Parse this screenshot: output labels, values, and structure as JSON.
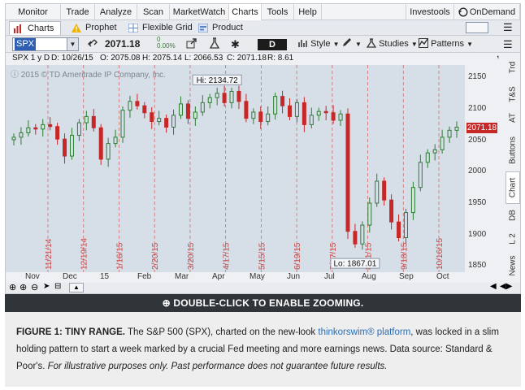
{
  "menu": {
    "items": [
      "Monitor",
      "Trade",
      "Analyze",
      "Scan",
      "MarketWatch",
      "Charts",
      "Tools",
      "Help"
    ],
    "right_items": [
      "Investools",
      "OnDemand"
    ]
  },
  "tabs": [
    "Charts",
    "Prophet",
    "Flexible Grid",
    "Product Depth"
  ],
  "toolbar": {
    "symbol": "SPX",
    "price": "2071.18",
    "change_top": "0",
    "change_bottom": "0.00%",
    "period": "D",
    "style_label": "Style",
    "studies_label": "Studies",
    "patterns_label": "Patterns"
  },
  "info": {
    "symbol_range": "SPX 1 y D",
    "date": "D: 10/26/15",
    "open": "O: 2075.08",
    "high": "H: 2075.14",
    "low": "L: 2066.53",
    "close": "C: 2071.18",
    "range": "R: 8.61"
  },
  "copyright": "2015 © TD Ameritrade IP Company, Inc.",
  "annotations": {
    "high": "Hi: 2134.72",
    "low": "Lo: 1867.01",
    "last_price": "2071.18"
  },
  "side_tabs": [
    "Trd",
    "T&S",
    "AT",
    "Buttons",
    "Chart",
    "DB",
    "L 2",
    "News"
  ],
  "chart_data": {
    "type": "candlestick",
    "yticks": [
      2150,
      2100,
      2050,
      2000,
      1950,
      1900,
      1850
    ],
    "ylim": [
      1840,
      2170
    ],
    "xtick_labels": [
      "Nov",
      "Dec",
      "15",
      "Feb",
      "Mar",
      "Apr",
      "May",
      "Jun",
      "Jul",
      "Aug",
      "Sep",
      "Oct"
    ],
    "event_dates": [
      "11/21/14",
      "12/19/14",
      "1/16/15",
      "2/20/15",
      "3/20/15",
      "4/17/15",
      "5/15/15",
      "6/19/15",
      "7/17/15",
      "8/21/15",
      "9/18/15",
      "10/16/15"
    ],
    "closes": [
      2055,
      2062,
      2070,
      2068,
      2075,
      2072,
      2052,
      2025,
      2058,
      2078,
      2088,
      2070,
      2020,
      2045,
      2055,
      2098,
      2112,
      2105,
      2094,
      2080,
      2085,
      2071,
      2090,
      2108,
      2085,
      2095,
      2110,
      2118,
      2125,
      2110,
      2128,
      2112,
      2085,
      2095,
      2080,
      2092,
      2120,
      2105,
      2088,
      2110,
      2075,
      2090,
      2096,
      2094,
      2082,
      2092,
      1905,
      1885,
      1915,
      1950,
      1985,
      1955,
      1920,
      1895,
      1935,
      1975,
      2015,
      2030,
      2035,
      2055,
      2066,
      2071
    ]
  },
  "banner": "DOUBLE-CLICK TO ENABLE ZOOMING.",
  "caption": {
    "label": "FIGURE 1: TINY RANGE.",
    "text1": "The S&P 500 (SPX), charted on the new-look",
    "link": "thinkorswim® platform",
    "text2": ", was locked in a slim holding pattern to start a week marked by a crucial Fed meeting and more earnings news. Data source: Standard & Poor's.",
    "disclaimer": "For illustrative purposes only. Past performance does not guarantee future results."
  },
  "colors": {
    "up": "#2e7d32",
    "down": "#c62828",
    "chart_bg": "#d6dee8",
    "banner_bg": "#30353a",
    "link": "#2a6fb5",
    "price_tag": "#c62828"
  }
}
